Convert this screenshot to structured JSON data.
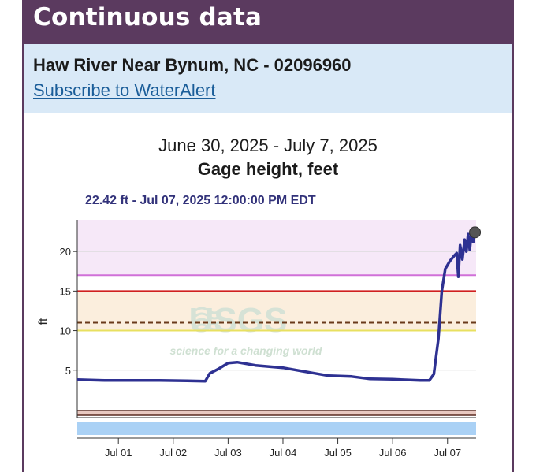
{
  "panel": {
    "title": "Continuous data"
  },
  "site": {
    "name": "Haw River Near Bynum, NC - 02096960",
    "subscribe_label": "Subscribe to WaterAlert"
  },
  "chart_data": {
    "type": "line",
    "date_range": "June 30, 2025 - July 7, 2025",
    "title": "Gage height, feet",
    "ylabel": "ft",
    "xlabel": "",
    "tooltip": "22.42 ft - Jul 07, 2025 12:00:00 PM EDT",
    "ylim": [
      -1,
      24
    ],
    "xlim": [
      "2025-06-30T06:00",
      "2025-07-07T12:30"
    ],
    "yticks": [
      5,
      10,
      15,
      20
    ],
    "xticks": [
      {
        "x": "2025-07-01T00:00",
        "label": "Jul 01"
      },
      {
        "x": "2025-07-02T00:00",
        "label": "Jul 02"
      },
      {
        "x": "2025-07-03T00:00",
        "label": "Jul 03"
      },
      {
        "x": "2025-07-04T00:00",
        "label": "Jul 04"
      },
      {
        "x": "2025-07-05T00:00",
        "label": "Jul 05"
      },
      {
        "x": "2025-07-06T00:00",
        "label": "Jul 06"
      },
      {
        "x": "2025-07-07T00:00",
        "label": "Jul 07"
      }
    ],
    "grid": true,
    "thresholds": [
      {
        "value": 17,
        "color": "#d070d8"
      },
      {
        "value": 15,
        "color": "#d02020"
      },
      {
        "value": 11,
        "color": "#6a3a1a",
        "dashed": true
      },
      {
        "value": 10,
        "color": "#e8e060"
      }
    ],
    "bands": [
      {
        "from": 17,
        "to": 24,
        "color": "#f6e8f8"
      },
      {
        "from": 15,
        "to": 17,
        "color": "#ffffff"
      },
      {
        "from": 10,
        "to": 15,
        "color": "#fbeedd"
      }
    ],
    "series": [
      {
        "color": "#2e3192",
        "points": [
          [
            "2025-06-30T06:00",
            3.8
          ],
          [
            "2025-06-30T18:00",
            3.7
          ],
          [
            "2025-07-01T06:00",
            3.7
          ],
          [
            "2025-07-01T18:00",
            3.7
          ],
          [
            "2025-07-02T06:00",
            3.65
          ],
          [
            "2025-07-02T14:00",
            3.6
          ],
          [
            "2025-07-02T16:00",
            4.6
          ],
          [
            "2025-07-02T20:00",
            5.2
          ],
          [
            "2025-07-03T00:00",
            5.9
          ],
          [
            "2025-07-03T04:00",
            6.0
          ],
          [
            "2025-07-03T12:00",
            5.6
          ],
          [
            "2025-07-04T00:00",
            5.3
          ],
          [
            "2025-07-04T12:00",
            4.7
          ],
          [
            "2025-07-04T20:00",
            4.3
          ],
          [
            "2025-07-05T06:00",
            4.2
          ],
          [
            "2025-07-05T14:00",
            3.9
          ],
          [
            "2025-07-06T00:00",
            3.85
          ],
          [
            "2025-07-06T12:00",
            3.7
          ],
          [
            "2025-07-06T16:00",
            3.7
          ],
          [
            "2025-07-06T18:00",
            4.5
          ],
          [
            "2025-07-06T20:00",
            9.0
          ],
          [
            "2025-07-06T21:30",
            15.0
          ],
          [
            "2025-07-06T23:00",
            17.8
          ],
          [
            "2025-07-07T01:00",
            18.8
          ],
          [
            "2025-07-07T03:00",
            19.5
          ],
          [
            "2025-07-07T04:00",
            19.8
          ],
          [
            "2025-07-07T04:45",
            16.8
          ],
          [
            "2025-07-07T05:30",
            20.8
          ],
          [
            "2025-07-07T06:30",
            19.0
          ],
          [
            "2025-07-07T07:30",
            21.5
          ],
          [
            "2025-07-07T08:15",
            20.0
          ],
          [
            "2025-07-07T09:00",
            22.2
          ],
          [
            "2025-07-07T09:45",
            20.2
          ],
          [
            "2025-07-07T10:30",
            22.5
          ],
          [
            "2025-07-07T11:15",
            21.2
          ],
          [
            "2025-07-07T12:00",
            22.42
          ]
        ]
      }
    ],
    "watermark": {
      "logo": "USGS",
      "tagline": "science for a changing world"
    }
  }
}
